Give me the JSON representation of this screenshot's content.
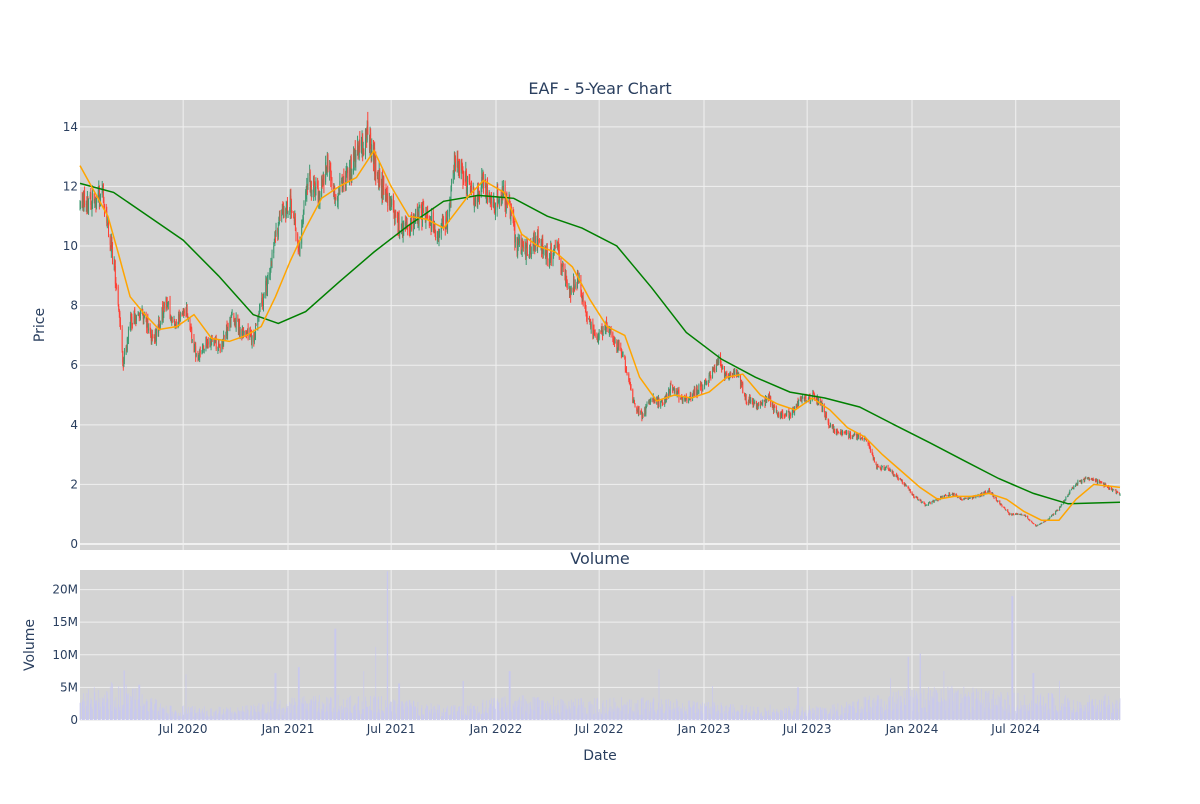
{
  "colors": {
    "plot_bg": "#d3d3d3",
    "grid": "#f0f0f0",
    "up": "#3d9970",
    "down": "#ff4136",
    "ma_short": "#ffa500",
    "ma_long": "#008000",
    "volume": "#c8c8ee",
    "text": "#2a3f5f"
  },
  "chart_data": [
    {
      "type": "candlestick",
      "title": "EAF - 5-Year Chart",
      "ylabel": "Price",
      "xlabel": "",
      "ylim": [
        -0.2,
        14.9
      ],
      "xlim": [
        "2020-01-02",
        "2024-12-31"
      ],
      "yticks": [
        0,
        2,
        4,
        6,
        8,
        10,
        12,
        14
      ],
      "xtick_dates": [
        "2020-07-01",
        "2021-01-01",
        "2021-07-01",
        "2022-01-01",
        "2022-07-01",
        "2023-01-01",
        "2023-07-01",
        "2024-01-01",
        "2024-07-01"
      ],
      "grid": true,
      "price_path": [
        [
          "2020-01-02",
          11.4
        ],
        [
          "2020-01-20",
          11.5
        ],
        [
          "2020-02-10",
          11.8
        ],
        [
          "2020-02-25",
          10.1
        ],
        [
          "2020-03-10",
          8.0
        ],
        [
          "2020-03-18",
          6.0
        ],
        [
          "2020-03-30",
          7.5
        ],
        [
          "2020-04-20",
          7.8
        ],
        [
          "2020-05-10",
          6.8
        ],
        [
          "2020-06-01",
          8.2
        ],
        [
          "2020-06-15",
          7.3
        ],
        [
          "2020-07-05",
          7.9
        ],
        [
          "2020-07-25",
          6.3
        ],
        [
          "2020-08-15",
          6.9
        ],
        [
          "2020-09-05",
          6.6
        ],
        [
          "2020-09-25",
          7.6
        ],
        [
          "2020-10-15",
          7.1
        ],
        [
          "2020-11-01",
          6.9
        ],
        [
          "2020-11-15",
          8.0
        ],
        [
          "2020-12-01",
          9.2
        ],
        [
          "2020-12-15",
          10.8
        ],
        [
          "2021-01-05",
          11.5
        ],
        [
          "2021-01-20",
          9.9
        ],
        [
          "2021-02-05",
          12.2
        ],
        [
          "2021-02-25",
          11.7
        ],
        [
          "2021-03-10",
          12.9
        ],
        [
          "2021-03-25",
          11.6
        ],
        [
          "2021-04-15",
          12.4
        ],
        [
          "2021-05-05",
          13.2
        ],
        [
          "2021-05-20",
          13.7
        ],
        [
          "2021-06-10",
          12.2
        ],
        [
          "2021-07-01",
          11.3
        ],
        [
          "2021-07-20",
          10.5
        ],
        [
          "2021-08-10",
          10.9
        ],
        [
          "2021-08-30",
          11.2
        ],
        [
          "2021-09-20",
          10.3
        ],
        [
          "2021-10-10",
          11.0
        ],
        [
          "2021-10-20",
          12.9
        ],
        [
          "2021-11-05",
          12.5
        ],
        [
          "2021-11-25",
          11.6
        ],
        [
          "2021-12-10",
          12.1
        ],
        [
          "2021-12-28",
          11.4
        ],
        [
          "2022-01-10",
          11.8
        ],
        [
          "2022-01-25",
          11.3
        ],
        [
          "2022-02-05",
          10.1
        ],
        [
          "2022-02-25",
          9.8
        ],
        [
          "2022-03-15",
          10.3
        ],
        [
          "2022-04-01",
          9.6
        ],
        [
          "2022-04-20",
          9.9
        ],
        [
          "2022-05-10",
          8.4
        ],
        [
          "2022-05-25",
          8.9
        ],
        [
          "2022-06-10",
          7.6
        ],
        [
          "2022-06-25",
          6.8
        ],
        [
          "2022-07-15",
          7.3
        ],
        [
          "2022-07-25",
          7.0
        ],
        [
          "2022-08-15",
          6.1
        ],
        [
          "2022-09-01",
          4.6
        ],
        [
          "2022-09-15",
          4.3
        ],
        [
          "2022-09-30",
          4.9
        ],
        [
          "2022-10-20",
          4.7
        ],
        [
          "2022-11-05",
          5.3
        ],
        [
          "2022-11-25",
          4.8
        ],
        [
          "2022-12-10",
          5.0
        ],
        [
          "2023-01-05",
          5.4
        ],
        [
          "2023-01-25",
          6.2
        ],
        [
          "2023-02-10",
          5.6
        ],
        [
          "2023-02-28",
          5.8
        ],
        [
          "2023-03-15",
          4.9
        ],
        [
          "2023-04-05",
          4.6
        ],
        [
          "2023-04-25",
          4.9
        ],
        [
          "2023-05-10",
          4.3
        ],
        [
          "2023-06-01",
          4.4
        ],
        [
          "2023-06-20",
          4.8
        ],
        [
          "2023-07-15",
          5.0
        ],
        [
          "2023-07-25",
          4.7
        ],
        [
          "2023-08-10",
          3.9
        ],
        [
          "2023-09-01",
          3.7
        ],
        [
          "2023-09-25",
          3.6
        ],
        [
          "2023-10-15",
          3.5
        ],
        [
          "2023-10-30",
          2.6
        ],
        [
          "2023-11-20",
          2.5
        ],
        [
          "2023-12-10",
          2.2
        ],
        [
          "2024-01-05",
          1.6
        ],
        [
          "2024-01-25",
          1.3
        ],
        [
          "2024-02-15",
          1.5
        ],
        [
          "2024-03-10",
          1.7
        ],
        [
          "2024-04-01",
          1.5
        ],
        [
          "2024-04-25",
          1.6
        ],
        [
          "2024-05-15",
          1.8
        ],
        [
          "2024-06-01",
          1.4
        ],
        [
          "2024-06-20",
          1.0
        ],
        [
          "2024-07-15",
          1.0
        ],
        [
          "2024-08-05",
          0.6
        ],
        [
          "2024-08-25",
          0.8
        ],
        [
          "2024-09-15",
          1.2
        ],
        [
          "2024-10-05",
          1.8
        ],
        [
          "2024-10-20",
          2.1
        ],
        [
          "2024-11-10",
          2.2
        ],
        [
          "2024-12-01",
          2.0
        ],
        [
          "2024-12-31",
          1.7
        ]
      ],
      "ma_short": [
        [
          "2020-01-02",
          12.7
        ],
        [
          "2020-01-25",
          11.9
        ],
        [
          "2020-02-20",
          11.0
        ],
        [
          "2020-03-10",
          9.7
        ],
        [
          "2020-03-30",
          8.3
        ],
        [
          "2020-04-25",
          7.7
        ],
        [
          "2020-05-20",
          7.2
        ],
        [
          "2020-06-20",
          7.3
        ],
        [
          "2020-07-20",
          7.7
        ],
        [
          "2020-08-20",
          6.9
        ],
        [
          "2020-09-20",
          6.8
        ],
        [
          "2020-10-20",
          7.0
        ],
        [
          "2020-11-15",
          7.3
        ],
        [
          "2020-12-10",
          8.3
        ],
        [
          "2021-01-05",
          9.5
        ],
        [
          "2021-02-01",
          10.6
        ],
        [
          "2021-03-01",
          11.6
        ],
        [
          "2021-04-01",
          12.0
        ],
        [
          "2021-05-01",
          12.3
        ],
        [
          "2021-06-01",
          13.2
        ],
        [
          "2021-07-01",
          12.0
        ],
        [
          "2021-08-01",
          11.0
        ],
        [
          "2021-09-01",
          10.9
        ],
        [
          "2021-10-01",
          10.6
        ],
        [
          "2021-11-10",
          11.6
        ],
        [
          "2021-12-10",
          12.2
        ],
        [
          "2022-01-15",
          11.8
        ],
        [
          "2022-02-15",
          10.4
        ],
        [
          "2022-03-15",
          10.0
        ],
        [
          "2022-04-15",
          9.8
        ],
        [
          "2022-05-15",
          9.3
        ],
        [
          "2022-06-15",
          8.2
        ],
        [
          "2022-07-15",
          7.3
        ],
        [
          "2022-08-15",
          7.0
        ],
        [
          "2022-09-10",
          5.6
        ],
        [
          "2022-10-10",
          4.8
        ],
        [
          "2022-11-10",
          5.0
        ],
        [
          "2022-12-10",
          4.9
        ],
        [
          "2023-01-10",
          5.1
        ],
        [
          "2023-02-10",
          5.6
        ],
        [
          "2023-03-10",
          5.7
        ],
        [
          "2023-04-10",
          5.0
        ],
        [
          "2023-05-10",
          4.7
        ],
        [
          "2023-06-10",
          4.5
        ],
        [
          "2023-07-10",
          4.9
        ],
        [
          "2023-08-10",
          4.5
        ],
        [
          "2023-09-10",
          3.9
        ],
        [
          "2023-10-10",
          3.6
        ],
        [
          "2023-11-10",
          3.0
        ],
        [
          "2023-12-10",
          2.5
        ],
        [
          "2024-01-15",
          1.9
        ],
        [
          "2024-02-15",
          1.5
        ],
        [
          "2024-03-15",
          1.6
        ],
        [
          "2024-04-15",
          1.6
        ],
        [
          "2024-05-15",
          1.7
        ],
        [
          "2024-06-15",
          1.5
        ],
        [
          "2024-07-15",
          1.1
        ],
        [
          "2024-08-15",
          0.8
        ],
        [
          "2024-09-15",
          0.8
        ],
        [
          "2024-10-15",
          1.5
        ],
        [
          "2024-11-15",
          2.0
        ],
        [
          "2024-12-31",
          1.9
        ]
      ],
      "ma_long": [
        [
          "2020-01-02",
          12.1
        ],
        [
          "2020-03-01",
          11.8
        ],
        [
          "2020-05-01",
          11.0
        ],
        [
          "2020-07-01",
          10.2
        ],
        [
          "2020-09-01",
          9.0
        ],
        [
          "2020-11-01",
          7.7
        ],
        [
          "2020-12-15",
          7.4
        ],
        [
          "2021-02-01",
          7.8
        ],
        [
          "2021-04-01",
          8.8
        ],
        [
          "2021-06-01",
          9.8
        ],
        [
          "2021-08-01",
          10.7
        ],
        [
          "2021-10-01",
          11.5
        ],
        [
          "2021-12-01",
          11.7
        ],
        [
          "2022-02-01",
          11.6
        ],
        [
          "2022-04-01",
          11.0
        ],
        [
          "2022-06-01",
          10.6
        ],
        [
          "2022-08-01",
          10.0
        ],
        [
          "2022-10-01",
          8.6
        ],
        [
          "2022-12-01",
          7.1
        ],
        [
          "2023-02-01",
          6.2
        ],
        [
          "2023-04-01",
          5.6
        ],
        [
          "2023-06-01",
          5.1
        ],
        [
          "2023-08-01",
          4.9
        ],
        [
          "2023-10-01",
          4.6
        ],
        [
          "2023-12-01",
          4.0
        ],
        [
          "2024-02-01",
          3.4
        ],
        [
          "2024-04-01",
          2.8
        ],
        [
          "2024-06-01",
          2.2
        ],
        [
          "2024-08-01",
          1.7
        ],
        [
          "2024-10-01",
          1.35
        ],
        [
          "2024-12-31",
          1.4
        ]
      ]
    },
    {
      "type": "bar",
      "title": "Volume",
      "xlabel": "Date",
      "ylabel": "Volume",
      "ylim": [
        0,
        23000000
      ],
      "yticks": [
        0,
        5000000,
        10000000,
        15000000,
        20000000
      ],
      "ytick_labels": [
        "0",
        "5M",
        "10M",
        "15M",
        "20M"
      ],
      "xtick_labels": [
        "Jul 2020",
        "Jan 2021",
        "Jul 2021",
        "Jan 2022",
        "Jul 2022",
        "Jan 2023",
        "Jul 2023",
        "Jan 2024",
        "Jul 2024"
      ],
      "xtick_dates": [
        "2020-07-01",
        "2021-01-01",
        "2021-07-01",
        "2022-01-01",
        "2022-07-01",
        "2023-01-01",
        "2023-07-01",
        "2024-01-01",
        "2024-07-01"
      ],
      "grid": true,
      "base_level": [
        [
          "2020-01-02",
          3000000
        ],
        [
          "2020-03-15",
          4000000
        ],
        [
          "2020-06-01",
          1500000
        ],
        [
          "2020-10-01",
          1300000
        ],
        [
          "2021-02-01",
          2500000
        ],
        [
          "2021-06-01",
          2500000
        ],
        [
          "2021-10-01",
          1500000
        ],
        [
          "2022-02-01",
          2500000
        ],
        [
          "2022-06-01",
          2200000
        ],
        [
          "2022-10-01",
          2300000
        ],
        [
          "2023-03-01",
          1600000
        ],
        [
          "2023-08-01",
          1400000
        ],
        [
          "2023-12-01",
          3000000
        ],
        [
          "2024-03-01",
          3500000
        ],
        [
          "2024-07-01",
          2800000
        ],
        [
          "2024-12-31",
          2500000
        ]
      ],
      "spikes": [
        [
          "2020-03-20",
          7600000
        ],
        [
          "2020-04-15",
          5400000
        ],
        [
          "2020-07-05",
          7000000
        ],
        [
          "2020-12-10",
          7200000
        ],
        [
          "2021-01-20",
          8100000
        ],
        [
          "2021-03-25",
          14000000
        ],
        [
          "2021-05-15",
          7500000
        ],
        [
          "2021-06-05",
          11200000
        ],
        [
          "2021-06-25",
          22800000
        ],
        [
          "2021-07-15",
          5600000
        ],
        [
          "2021-11-05",
          6000000
        ],
        [
          "2022-01-25",
          7500000
        ],
        [
          "2022-10-15",
          7800000
        ],
        [
          "2023-01-15",
          5200000
        ],
        [
          "2023-06-15",
          5000000
        ],
        [
          "2023-11-25",
          6400000
        ],
        [
          "2023-12-25",
          9700000
        ],
        [
          "2024-01-15",
          10200000
        ],
        [
          "2024-02-25",
          7500000
        ],
        [
          "2024-06-25",
          19000000
        ],
        [
          "2024-08-01",
          7200000
        ],
        [
          "2024-09-15",
          6000000
        ]
      ]
    }
  ]
}
